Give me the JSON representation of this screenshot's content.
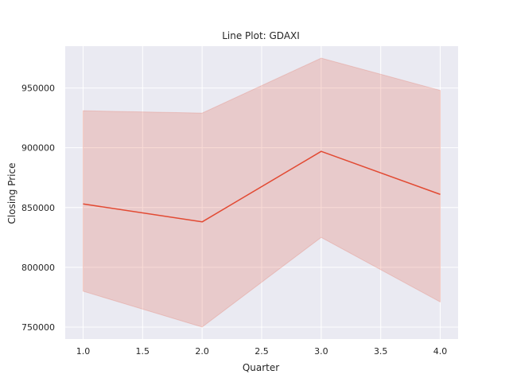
{
  "chart_data": {
    "type": "line",
    "title": "Line Plot: GDAXI",
    "xlabel": "Quarter",
    "ylabel": "Closing Price",
    "x": [
      1.0,
      2.0,
      3.0,
      4.0
    ],
    "series": [
      {
        "values": [
          853000,
          838000,
          897000,
          861000
        ],
        "ci_lower": [
          780000,
          750000,
          825000,
          771000
        ],
        "ci_upper": [
          931000,
          929000,
          975000,
          948000
        ],
        "color": "#e24a33"
      }
    ],
    "xlim": [
      0.85,
      4.15
    ],
    "ylim": [
      740000,
      985000
    ],
    "x_ticks": [
      1.0,
      1.5,
      2.0,
      2.5,
      3.0,
      3.5,
      4.0
    ],
    "x_tick_labels": [
      "1.0",
      "1.5",
      "2.0",
      "2.5",
      "3.0",
      "3.5",
      "4.0"
    ],
    "y_ticks": [
      750000,
      800000,
      850000,
      900000,
      950000
    ],
    "y_tick_labels": [
      "750000",
      "800000",
      "850000",
      "900000",
      "950000"
    ],
    "grid": true,
    "legend": "none",
    "colors": {
      "plot_background": "#eaeaf2",
      "grid": "#ffffff",
      "line": "#e24a33",
      "band": "#e24a33",
      "text": "#262626"
    }
  }
}
